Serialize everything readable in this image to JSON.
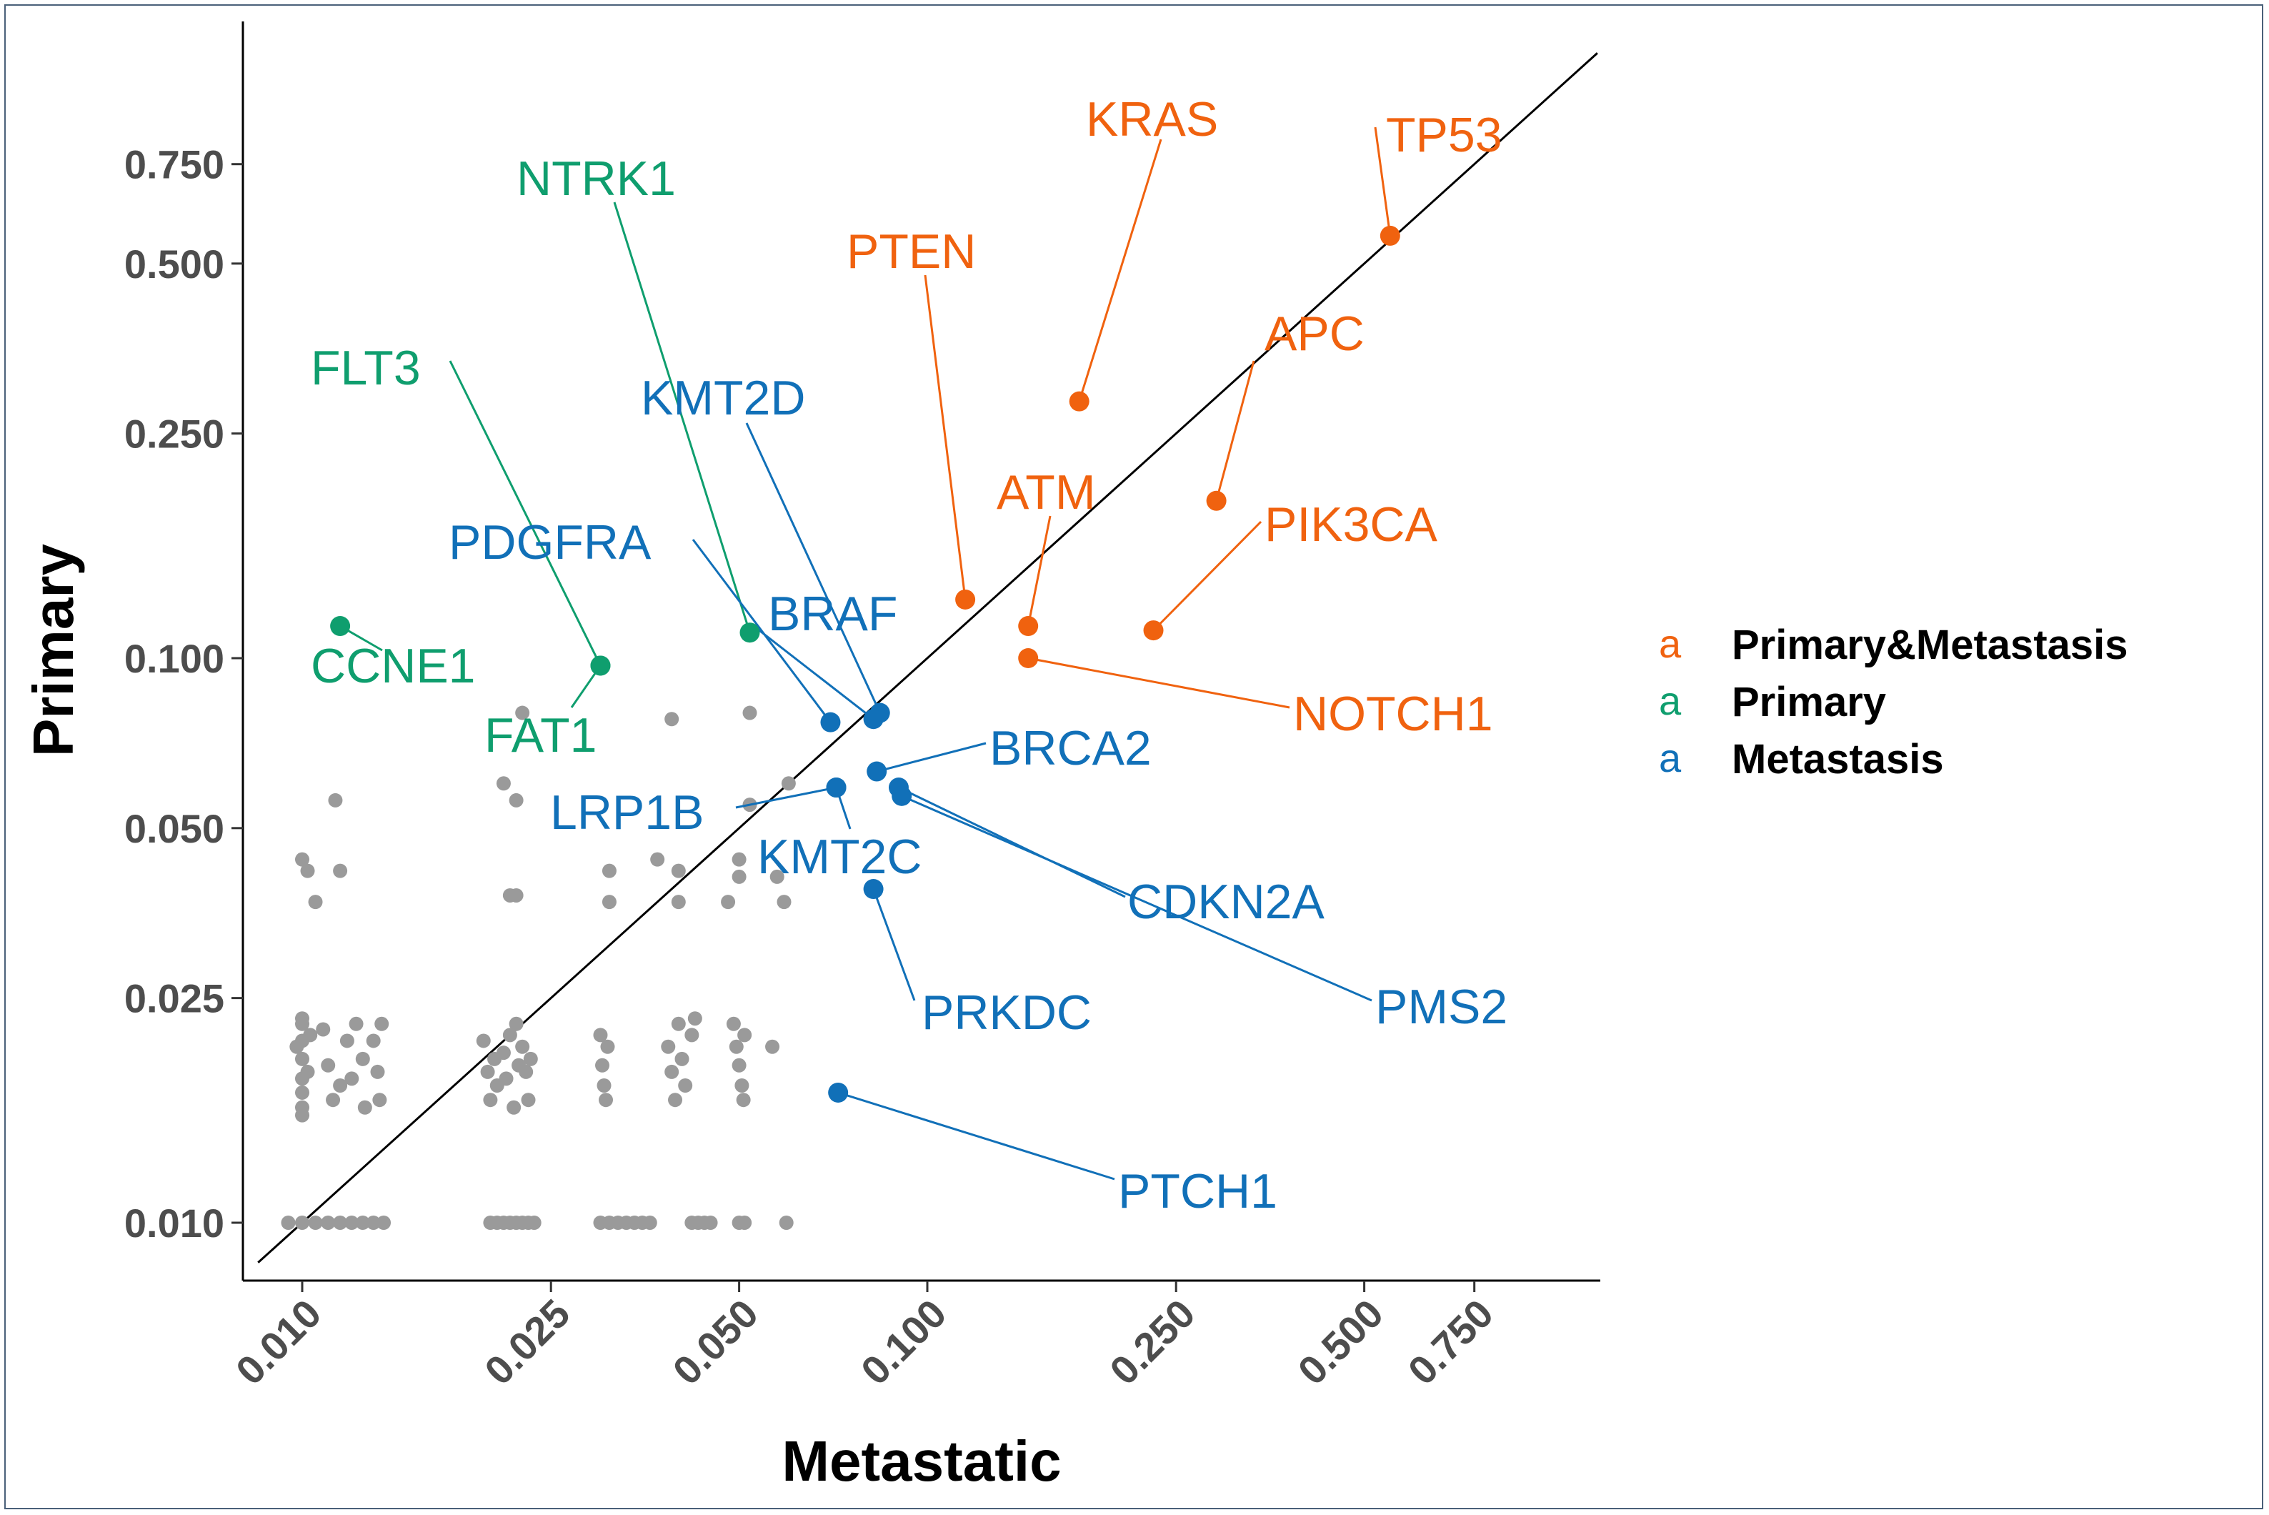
{
  "chart_data": {
    "type": "scatter",
    "xlabel": "Metastatic",
    "ylabel": "Primary",
    "scale": "log",
    "xlim": [
      0.0085,
      1.35
    ],
    "ylim": [
      0.0085,
      1.35
    ],
    "xticks": [
      "0.010",
      "0.025",
      "0.050",
      "0.100",
      "0.250",
      "0.500",
      "0.750"
    ],
    "yticks": [
      "0.010",
      "0.025",
      "0.050",
      "0.100",
      "0.250",
      "0.500",
      "0.750"
    ],
    "tick_values": [
      0.01,
      0.025,
      0.05,
      0.1,
      0.25,
      0.5,
      0.75
    ],
    "reference_line": "y = x",
    "colors": {
      "Primary&Metastasis": "#f0620f",
      "Primary": "#0f9e6e",
      "Metastasis": "#1170b8",
      "background": "#9a9a9a",
      "line": "#000000"
    },
    "legend": [
      {
        "key": "a",
        "label": "Primary&Metastasis",
        "group": "Primary&Metastasis"
      },
      {
        "key": "a",
        "label": "Primary",
        "group": "Primary"
      },
      {
        "key": "a",
        "label": "Metastasis",
        "group": "Metastasis"
      }
    ],
    "highlighted": [
      {
        "gene": "TP53",
        "group": "Primary&Metastasis",
        "x": 0.55,
        "y": 0.56
      },
      {
        "gene": "KRAS",
        "group": "Primary&Metastasis",
        "x": 0.175,
        "y": 0.285
      },
      {
        "gene": "APC",
        "group": "Primary&Metastasis",
        "x": 0.29,
        "y": 0.19
      },
      {
        "gene": "PTEN",
        "group": "Primary&Metastasis",
        "x": 0.115,
        "y": 0.127
      },
      {
        "gene": "ATM",
        "group": "Primary&Metastasis",
        "x": 0.145,
        "y": 0.114
      },
      {
        "gene": "PIK3CA",
        "group": "Primary&Metastasis",
        "x": 0.23,
        "y": 0.112
      },
      {
        "gene": "NOTCH1",
        "group": "Primary&Metastasis",
        "x": 0.145,
        "y": 0.1
      },
      {
        "gene": "NTRK1",
        "group": "Primary",
        "x": 0.052,
        "y": 0.111
      },
      {
        "gene": "FLT3",
        "group": "Primary",
        "x": 0.03,
        "y": 0.097
      },
      {
        "gene": "CCNE1",
        "group": "Primary",
        "x": 0.0115,
        "y": 0.114
      },
      {
        "gene": "FAT1",
        "group": "Primary",
        "x": 0.03,
        "y": 0.097
      },
      {
        "gene": "KMT2D",
        "group": "Metastasis",
        "x": 0.084,
        "y": 0.08
      },
      {
        "gene": "PDGFRA",
        "group": "Metastasis",
        "x": 0.07,
        "y": 0.077
      },
      {
        "gene": "BRAF",
        "group": "Metastasis",
        "x": 0.082,
        "y": 0.078
      },
      {
        "gene": "BRCA2",
        "group": "Metastasis",
        "x": 0.083,
        "y": 0.063
      },
      {
        "gene": "LRP1B",
        "group": "Metastasis",
        "x": 0.0715,
        "y": 0.059
      },
      {
        "gene": "KMT2C",
        "group": "Metastasis",
        "x": 0.0715,
        "y": 0.059
      },
      {
        "gene": "CDKN2A",
        "group": "Metastasis",
        "x": 0.09,
        "y": 0.059
      },
      {
        "gene": "PMS2",
        "group": "Metastasis",
        "x": 0.091,
        "y": 0.057
      },
      {
        "gene": "PRKDC",
        "group": "Metastasis",
        "x": 0.082,
        "y": 0.039
      },
      {
        "gene": "PTCH1",
        "group": "Metastasis",
        "x": 0.072,
        "y": 0.017
      }
    ],
    "background_points": [
      [
        0.0095,
        0.01
      ],
      [
        0.01,
        0.01
      ],
      [
        0.0105,
        0.01
      ],
      [
        0.011,
        0.01
      ],
      [
        0.0115,
        0.01
      ],
      [
        0.012,
        0.01
      ],
      [
        0.0125,
        0.01
      ],
      [
        0.013,
        0.01
      ],
      [
        0.0135,
        0.01
      ],
      [
        0.02,
        0.01
      ],
      [
        0.0205,
        0.01
      ],
      [
        0.021,
        0.01
      ],
      [
        0.0215,
        0.01
      ],
      [
        0.022,
        0.01
      ],
      [
        0.0225,
        0.01
      ],
      [
        0.023,
        0.01
      ],
      [
        0.0235,
        0.01
      ],
      [
        0.03,
        0.01
      ],
      [
        0.031,
        0.01
      ],
      [
        0.032,
        0.01
      ],
      [
        0.033,
        0.01
      ],
      [
        0.034,
        0.01
      ],
      [
        0.035,
        0.01
      ],
      [
        0.036,
        0.01
      ],
      [
        0.042,
        0.01
      ],
      [
        0.043,
        0.01
      ],
      [
        0.044,
        0.01
      ],
      [
        0.045,
        0.01
      ],
      [
        0.05,
        0.01
      ],
      [
        0.051,
        0.01
      ],
      [
        0.0595,
        0.01
      ],
      [
        0.01,
        0.0225
      ],
      [
        0.01,
        0.021
      ],
      [
        0.01,
        0.0195
      ],
      [
        0.01,
        0.018
      ],
      [
        0.01,
        0.017
      ],
      [
        0.01,
        0.016
      ],
      [
        0.01,
        0.0155
      ],
      [
        0.01,
        0.023
      ],
      [
        0.0098,
        0.0205
      ],
      [
        0.0102,
        0.0185
      ],
      [
        0.0103,
        0.0215
      ],
      [
        0.0108,
        0.022
      ],
      [
        0.011,
        0.019
      ],
      [
        0.0112,
        0.0165
      ],
      [
        0.0115,
        0.0175
      ],
      [
        0.0118,
        0.021
      ],
      [
        0.012,
        0.018
      ],
      [
        0.0122,
        0.0225
      ],
      [
        0.0125,
        0.0195
      ],
      [
        0.0126,
        0.016
      ],
      [
        0.013,
        0.021
      ],
      [
        0.0132,
        0.0185
      ],
      [
        0.0133,
        0.0165
      ],
      [
        0.0134,
        0.0225
      ],
      [
        0.0195,
        0.021
      ],
      [
        0.0198,
        0.0185
      ],
      [
        0.02,
        0.0165
      ],
      [
        0.0203,
        0.0195
      ],
      [
        0.0205,
        0.0175
      ],
      [
        0.021,
        0.02
      ],
      [
        0.0212,
        0.018
      ],
      [
        0.0215,
        0.0215
      ],
      [
        0.0218,
        0.016
      ],
      [
        0.022,
        0.0225
      ],
      [
        0.0222,
        0.019
      ],
      [
        0.0225,
        0.0205
      ],
      [
        0.0228,
        0.0185
      ],
      [
        0.023,
        0.0165
      ],
      [
        0.0232,
        0.0195
      ],
      [
        0.03,
        0.0215
      ],
      [
        0.0302,
        0.019
      ],
      [
        0.0304,
        0.0175
      ],
      [
        0.0306,
        0.0165
      ],
      [
        0.0308,
        0.0205
      ],
      [
        0.0385,
        0.0205
      ],
      [
        0.039,
        0.0185
      ],
      [
        0.0395,
        0.0165
      ],
      [
        0.04,
        0.0225
      ],
      [
        0.0405,
        0.0195
      ],
      [
        0.041,
        0.0175
      ],
      [
        0.042,
        0.0215
      ],
      [
        0.0425,
        0.023
      ],
      [
        0.049,
        0.0225
      ],
      [
        0.0495,
        0.0205
      ],
      [
        0.05,
        0.019
      ],
      [
        0.0505,
        0.0175
      ],
      [
        0.0508,
        0.0165
      ],
      [
        0.051,
        0.0215
      ],
      [
        0.0565,
        0.0205
      ],
      [
        0.01,
        0.044
      ],
      [
        0.0102,
        0.042
      ],
      [
        0.0105,
        0.037
      ],
      [
        0.0115,
        0.042
      ],
      [
        0.0113,
        0.056
      ],
      [
        0.0215,
        0.038
      ],
      [
        0.022,
        0.038
      ],
      [
        0.021,
        0.06
      ],
      [
        0.0225,
        0.08
      ],
      [
        0.022,
        0.056
      ],
      [
        0.031,
        0.042
      ],
      [
        0.031,
        0.037
      ],
      [
        0.037,
        0.044
      ],
      [
        0.039,
        0.078
      ],
      [
        0.04,
        0.042
      ],
      [
        0.04,
        0.037
      ],
      [
        0.048,
        0.037
      ],
      [
        0.05,
        0.044
      ],
      [
        0.05,
        0.041
      ],
      [
        0.052,
        0.08
      ],
      [
        0.052,
        0.055
      ],
      [
        0.0575,
        0.041
      ],
      [
        0.059,
        0.037
      ],
      [
        0.06,
        0.06
      ]
    ]
  }
}
